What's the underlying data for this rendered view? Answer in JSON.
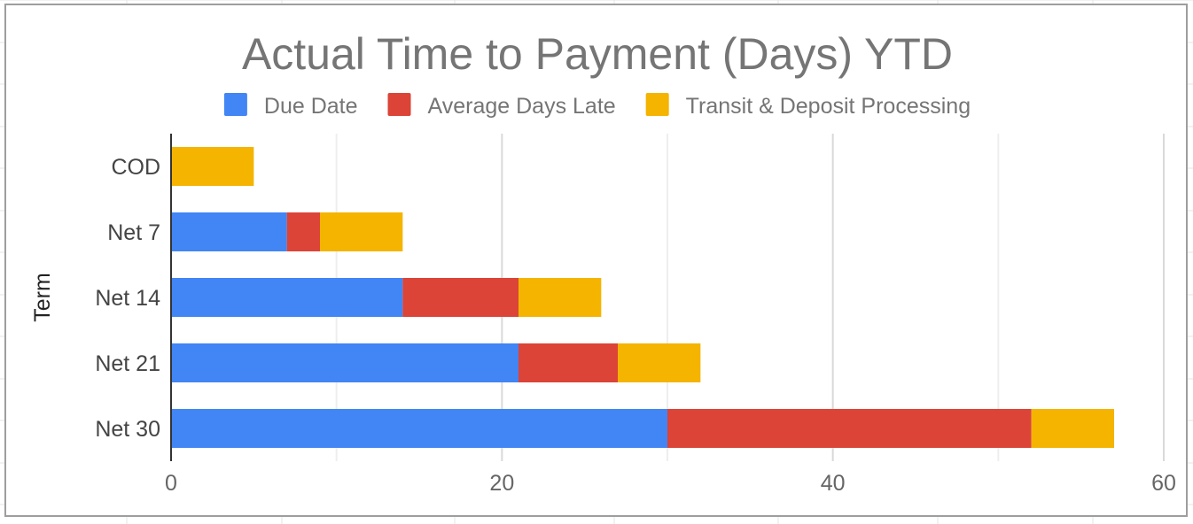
{
  "chart_data": {
    "type": "bar",
    "orientation": "horizontal",
    "stacked": true,
    "title": "Actual Time to Payment (Days) YTD",
    "xlabel": "",
    "ylabel": "Term",
    "categories": [
      "COD",
      "Net 7",
      "Net 14",
      "Net 21",
      "Net 30"
    ],
    "series": [
      {
        "name": "Due Date",
        "color": "#4285F4",
        "values": [
          0,
          7,
          14,
          21,
          30
        ]
      },
      {
        "name": "Average Days Late",
        "color": "#DB4437",
        "values": [
          0,
          2,
          7,
          6,
          22
        ]
      },
      {
        "name": "Transit & Deposit Processing",
        "color": "#F4B400",
        "values": [
          5,
          5,
          5,
          5,
          5
        ]
      }
    ],
    "xlim": [
      0,
      60
    ],
    "x_ticks": [
      0,
      20,
      40,
      60
    ],
    "x_tick_labels": [
      "0",
      "20",
      "40",
      "60"
    ],
    "x_minor_gridlines": [
      10,
      30,
      50
    ],
    "grid": true,
    "legend_position": "top"
  }
}
